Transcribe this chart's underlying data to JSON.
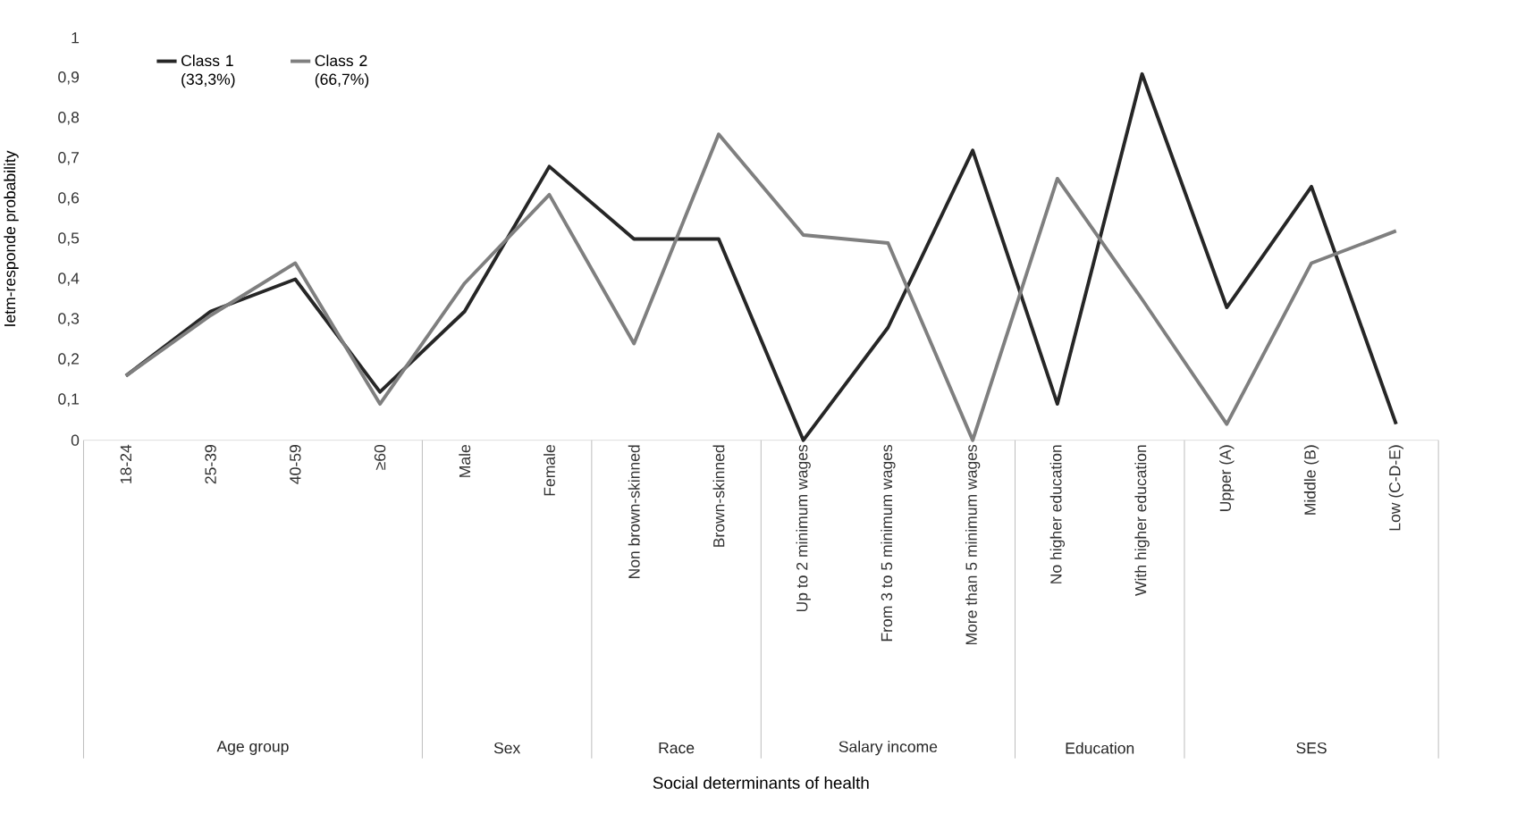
{
  "chart_data": {
    "type": "line",
    "ylabel": "Ietm-responde probability",
    "categories": [
      "18-24",
      "25-39",
      "40-59",
      "≥60",
      "Male",
      "Female",
      "Non brown-skinned",
      "Brown-skinned",
      "Up to 2 minimum wages",
      "From 3 to 5 minimum wages",
      "More than 5 minimum wages",
      "No higher education",
      "With higher education",
      "Upper (A)",
      "Middle (B)",
      "Low (C-D-E)"
    ],
    "series": [
      {
        "name": "Class 1 (33,3%)",
        "color": "#262626",
        "values": [
          0.16,
          0.32,
          0.4,
          0.12,
          0.32,
          0.68,
          0.5,
          0.5,
          0.0,
          0.28,
          0.72,
          0.09,
          0.91,
          0.33,
          0.63,
          0.04
        ]
      },
      {
        "name": "Class 2 (66,7%)",
        "color": "#7f7f7f",
        "values": [
          0.16,
          0.31,
          0.44,
          0.09,
          0.39,
          0.61,
          0.24,
          0.76,
          0.51,
          0.49,
          0.0,
          0.65,
          0.35,
          0.04,
          0.44,
          0.52
        ]
      }
    ],
    "ylim": [
      0,
      1
    ],
    "yticks": [
      0,
      {
        "value": 0.1,
        "label": "0,1"
      },
      {
        "value": 0.2,
        "label": "0,2"
      },
      {
        "value": 0.3,
        "label": "0,3"
      },
      {
        "value": 0.4,
        "label": "0,4"
      },
      {
        "value": 0.5,
        "label": "0,5"
      },
      {
        "value": 0.6,
        "label": "0,6"
      },
      {
        "value": 0.7,
        "label": "0,7"
      },
      {
        "value": 0.8,
        "label": "0,8"
      },
      {
        "value": 0.9,
        "label": "0,9"
      },
      1
    ],
    "annotations": [
      "Age group",
      "Sex",
      "Race",
      "Salary income",
      "Education",
      "SES",
      "Social determinants of health"
    ],
    "grid": false,
    "legend": "top left",
    "marker": "none",
    "line_style": "solid"
  }
}
